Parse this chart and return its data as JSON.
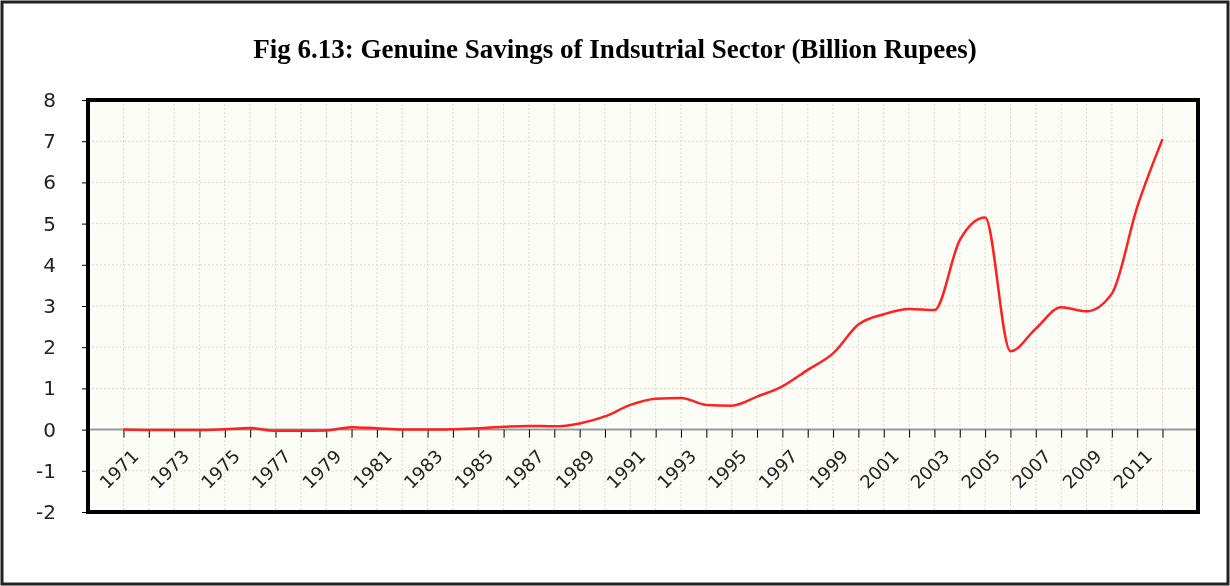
{
  "chart_data": {
    "type": "line",
    "title": "Fig 6.13: Genuine Savings of Indsutrial Sector (Billion Rupees)",
    "categories": [
      "1971",
      null,
      "1973",
      null,
      "1975",
      null,
      "1977",
      null,
      "1979",
      null,
      "1981",
      null,
      "1983",
      null,
      "1985",
      null,
      "1987",
      null,
      "1989",
      null,
      "1991",
      null,
      "1993",
      null,
      "1995",
      null,
      "1997",
      null,
      "1999",
      null,
      "2001",
      null,
      "2003",
      null,
      "2005",
      null,
      "2007",
      null,
      "2009",
      null,
      "2011",
      null
    ],
    "series": [
      {
        "color": "#ff2020",
        "values": [
          0,
          -0.01,
          -0.01,
          -0.01,
          0.01,
          0.04,
          -0.03,
          -0.03,
          -0.02,
          0.06,
          0.03,
          0,
          0,
          0.01,
          0.03,
          0.07,
          0.09,
          0.08,
          0.15,
          0.32,
          0.6,
          0.75,
          0.77,
          0.6,
          0.58,
          0.8,
          1.05,
          1.45,
          1.85,
          2.55,
          2.8,
          2.93,
          2.9,
          4.6,
          5.15,
          1.9,
          2.45,
          2.97,
          2.87,
          3.3,
          5.4,
          7.05
        ]
      }
    ],
    "ylim": [
      -2,
      8
    ],
    "yticks": [
      -2,
      -1,
      0,
      1,
      2,
      3,
      4,
      5,
      6,
      7,
      8
    ],
    "grid": true,
    "marker": "none",
    "line_style": "solid"
  }
}
